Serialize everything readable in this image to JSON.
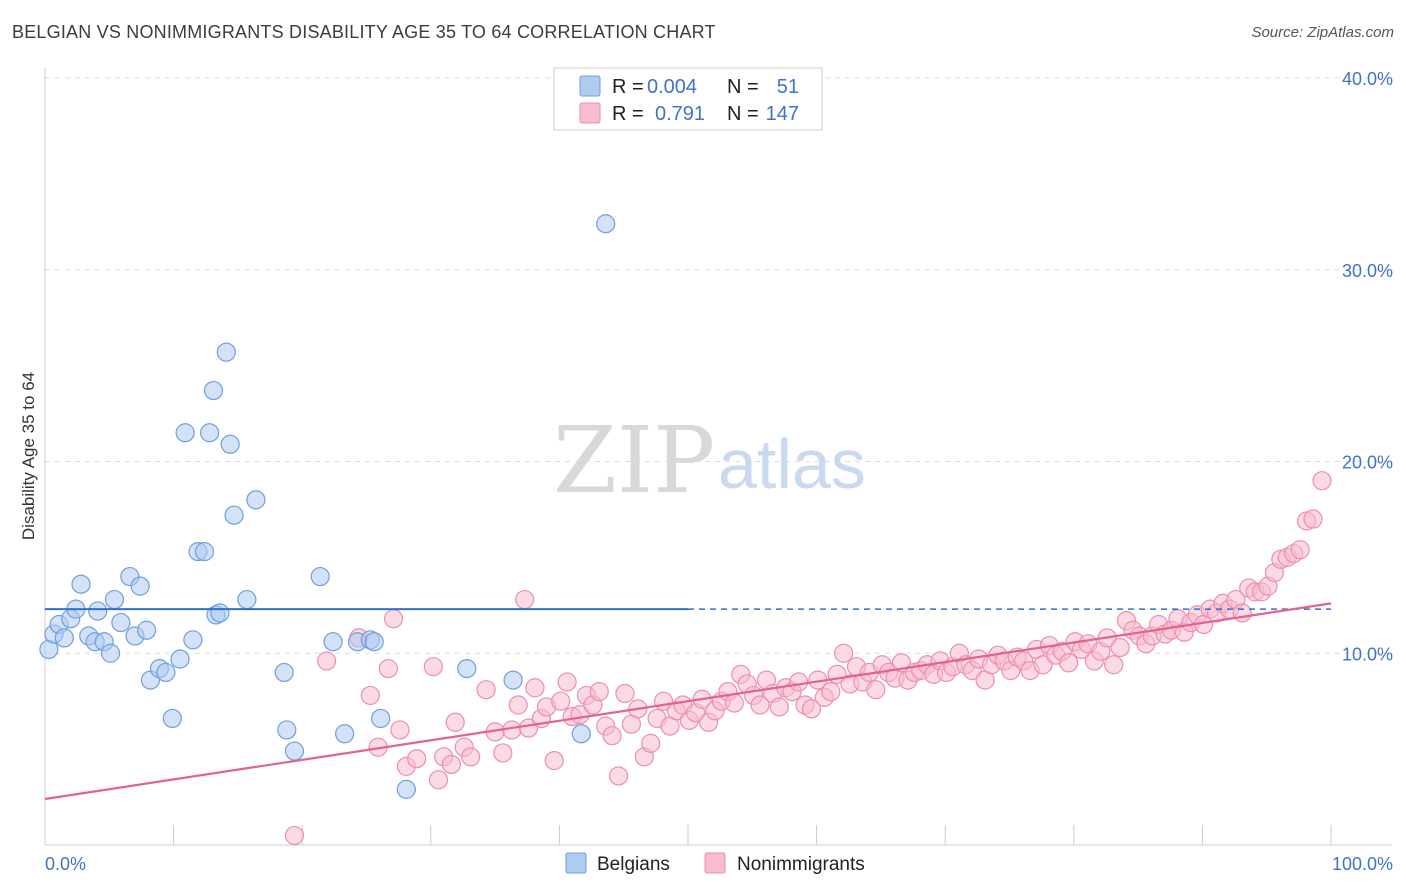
{
  "title": "BELGIAN VS NONIMMIGRANTS DISABILITY AGE 35 TO 64 CORRELATION CHART",
  "source": "Source: ZipAtlas.com",
  "watermark": {
    "part1": "ZIP",
    "part2": "atlas"
  },
  "legend_box": {
    "rows": [
      {
        "r_label": "R =",
        "r_value": "0.004",
        "n_label": "N =",
        "n_value": "51"
      },
      {
        "r_label": "R =",
        "r_value": "0.791",
        "n_label": "N =",
        "n_value": "147"
      }
    ]
  },
  "bottom_legend": [
    "Belgians",
    "Nonimmigrants"
  ],
  "colors": {
    "belgian_fill": "#aecbf0",
    "belgian_stroke": "#6f9fdc",
    "belgian_line": "#2f6fd0",
    "nonimm_fill": "#f7bcd0",
    "nonimm_stroke": "#ea8fb0",
    "nonimm_line": "#e3628f",
    "tick_text": "#3f73c9",
    "grid": "#dddddd"
  },
  "chart_data": {
    "type": "scatter",
    "title": "BELGIAN VS NONIMMIGRANTS DISABILITY AGE 35 TO 64 CORRELATION CHART",
    "xlabel": "",
    "ylabel": "Disability Age 35 to 64",
    "xlim": [
      0,
      100
    ],
    "ylim": [
      0,
      40
    ],
    "x_tick_labels": [
      "0.0%",
      "100.0%"
    ],
    "y_ticks": [
      10,
      20,
      30,
      40
    ],
    "y_tick_labels": [
      "10.0%",
      "20.0%",
      "30.0%",
      "40.0%"
    ],
    "grid": true,
    "legend_position": "top-center",
    "series": [
      {
        "name": "Belgians",
        "r": 0.004,
        "n": 51,
        "trend": {
          "x": [
            0,
            100
          ],
          "y": [
            12.3,
            12.3
          ],
          "solid_until_x": 50
        },
        "points": [
          [
            0.3,
            10.2
          ],
          [
            0.7,
            11.0
          ],
          [
            1.1,
            11.5
          ],
          [
            1.5,
            10.8
          ],
          [
            2.0,
            11.8
          ],
          [
            2.4,
            12.3
          ],
          [
            2.8,
            13.6
          ],
          [
            3.4,
            10.9
          ],
          [
            3.9,
            10.6
          ],
          [
            4.1,
            12.2
          ],
          [
            4.6,
            10.6
          ],
          [
            5.1,
            10.0
          ],
          [
            5.4,
            12.8
          ],
          [
            5.9,
            11.6
          ],
          [
            6.6,
            14.0
          ],
          [
            7.0,
            10.9
          ],
          [
            7.4,
            13.5
          ],
          [
            7.9,
            11.2
          ],
          [
            8.2,
            8.6
          ],
          [
            8.9,
            9.2
          ],
          [
            9.4,
            9.0
          ],
          [
            9.9,
            6.6
          ],
          [
            10.5,
            9.7
          ],
          [
            10.9,
            21.5
          ],
          [
            11.5,
            10.7
          ],
          [
            11.9,
            15.3
          ],
          [
            12.4,
            15.3
          ],
          [
            12.8,
            21.5
          ],
          [
            13.1,
            23.7
          ],
          [
            13.3,
            12.0
          ],
          [
            13.6,
            12.1
          ],
          [
            14.1,
            25.7
          ],
          [
            14.4,
            20.9
          ],
          [
            14.7,
            17.2
          ],
          [
            15.7,
            12.8
          ],
          [
            16.4,
            18.0
          ],
          [
            18.6,
            9.0
          ],
          [
            18.8,
            6.0
          ],
          [
            19.4,
            4.9
          ],
          [
            21.4,
            14.0
          ],
          [
            22.4,
            10.6
          ],
          [
            23.3,
            5.8
          ],
          [
            24.3,
            10.6
          ],
          [
            25.3,
            10.7
          ],
          [
            26.1,
            6.6
          ],
          [
            28.1,
            2.9
          ],
          [
            32.8,
            9.2
          ],
          [
            36.4,
            8.6
          ],
          [
            41.7,
            5.8
          ],
          [
            43.6,
            32.4
          ],
          [
            25.6,
            10.6
          ]
        ]
      },
      {
        "name": "Nonimmigrants",
        "r": 0.791,
        "n": 147,
        "trend": {
          "x": [
            0,
            100
          ],
          "y": [
            2.4,
            12.6
          ]
        },
        "points": [
          [
            19.4,
            0.5
          ],
          [
            21.9,
            9.6
          ],
          [
            24.4,
            10.8
          ],
          [
            25.3,
            7.8
          ],
          [
            25.9,
            5.1
          ],
          [
            26.7,
            9.2
          ],
          [
            27.1,
            11.8
          ],
          [
            27.6,
            6.0
          ],
          [
            28.1,
            4.1
          ],
          [
            28.9,
            4.5
          ],
          [
            30.2,
            9.3
          ],
          [
            30.6,
            3.4
          ],
          [
            31.0,
            4.6
          ],
          [
            31.6,
            4.2
          ],
          [
            31.9,
            6.4
          ],
          [
            32.6,
            5.1
          ],
          [
            33.1,
            4.6
          ],
          [
            34.3,
            8.1
          ],
          [
            35.0,
            5.9
          ],
          [
            35.6,
            4.8
          ],
          [
            36.3,
            6.0
          ],
          [
            36.8,
            7.3
          ],
          [
            37.3,
            12.8
          ],
          [
            37.6,
            6.1
          ],
          [
            38.1,
            8.2
          ],
          [
            38.6,
            6.6
          ],
          [
            39.0,
            7.2
          ],
          [
            39.6,
            4.4
          ],
          [
            40.1,
            7.5
          ],
          [
            40.6,
            8.5
          ],
          [
            41.0,
            6.7
          ],
          [
            41.6,
            6.8
          ],
          [
            42.1,
            7.8
          ],
          [
            42.6,
            7.3
          ],
          [
            43.1,
            8.0
          ],
          [
            43.6,
            6.2
          ],
          [
            44.1,
            5.7
          ],
          [
            44.6,
            3.6
          ],
          [
            45.1,
            7.9
          ],
          [
            45.6,
            6.3
          ],
          [
            46.1,
            7.1
          ],
          [
            46.6,
            4.6
          ],
          [
            47.1,
            5.3
          ],
          [
            47.6,
            6.6
          ],
          [
            48.1,
            7.5
          ],
          [
            48.6,
            6.2
          ],
          [
            49.1,
            7.0
          ],
          [
            49.6,
            7.3
          ],
          [
            50.1,
            6.5
          ],
          [
            50.6,
            6.9
          ],
          [
            51.1,
            7.6
          ],
          [
            51.6,
            6.4
          ],
          [
            52.1,
            7.0
          ],
          [
            52.6,
            7.5
          ],
          [
            53.1,
            8.0
          ],
          [
            53.6,
            7.4
          ],
          [
            54.1,
            8.9
          ],
          [
            54.6,
            8.4
          ],
          [
            55.1,
            7.8
          ],
          [
            55.6,
            7.3
          ],
          [
            56.1,
            8.6
          ],
          [
            56.6,
            7.9
          ],
          [
            57.1,
            7.2
          ],
          [
            57.6,
            8.2
          ],
          [
            58.1,
            8.0
          ],
          [
            58.6,
            8.5
          ],
          [
            59.1,
            7.3
          ],
          [
            59.6,
            7.1
          ],
          [
            60.1,
            8.6
          ],
          [
            60.6,
            7.7
          ],
          [
            61.1,
            8.0
          ],
          [
            61.6,
            8.9
          ],
          [
            62.1,
            10.0
          ],
          [
            62.6,
            8.4
          ],
          [
            63.1,
            9.3
          ],
          [
            63.6,
            8.5
          ],
          [
            64.1,
            9.0
          ],
          [
            64.6,
            8.1
          ],
          [
            65.1,
            9.4
          ],
          [
            65.6,
            9.0
          ],
          [
            66.1,
            8.7
          ],
          [
            66.6,
            9.5
          ],
          [
            67.1,
            8.6
          ],
          [
            67.6,
            9.0
          ],
          [
            68.1,
            9.1
          ],
          [
            68.6,
            9.4
          ],
          [
            69.1,
            8.9
          ],
          [
            69.6,
            9.6
          ],
          [
            70.1,
            9.0
          ],
          [
            70.6,
            9.3
          ],
          [
            71.1,
            10.0
          ],
          [
            71.6,
            9.4
          ],
          [
            72.1,
            9.1
          ],
          [
            72.6,
            9.7
          ],
          [
            73.1,
            8.6
          ],
          [
            73.6,
            9.4
          ],
          [
            74.1,
            9.9
          ],
          [
            74.6,
            9.6
          ],
          [
            75.1,
            9.1
          ],
          [
            75.6,
            9.8
          ],
          [
            76.1,
            9.6
          ],
          [
            76.6,
            9.1
          ],
          [
            77.1,
            10.2
          ],
          [
            77.6,
            9.4
          ],
          [
            78.1,
            10.4
          ],
          [
            78.6,
            9.9
          ],
          [
            79.1,
            10.1
          ],
          [
            79.6,
            9.5
          ],
          [
            80.1,
            10.6
          ],
          [
            80.6,
            10.2
          ],
          [
            81.1,
            10.5
          ],
          [
            81.6,
            9.6
          ],
          [
            82.1,
            10.1
          ],
          [
            82.6,
            10.8
          ],
          [
            83.1,
            9.4
          ],
          [
            83.6,
            10.3
          ],
          [
            84.1,
            11.7
          ],
          [
            84.6,
            11.2
          ],
          [
            85.1,
            10.9
          ],
          [
            85.6,
            10.5
          ],
          [
            86.1,
            10.9
          ],
          [
            86.6,
            11.5
          ],
          [
            87.1,
            11.0
          ],
          [
            87.6,
            11.2
          ],
          [
            88.1,
            11.8
          ],
          [
            88.6,
            11.1
          ],
          [
            89.1,
            11.6
          ],
          [
            89.6,
            12.0
          ],
          [
            90.1,
            11.5
          ],
          [
            90.6,
            12.3
          ],
          [
            91.1,
            12.1
          ],
          [
            91.6,
            12.6
          ],
          [
            92.1,
            12.3
          ],
          [
            92.6,
            12.8
          ],
          [
            93.1,
            12.1
          ],
          [
            93.6,
            13.4
          ],
          [
            94.1,
            13.2
          ],
          [
            94.6,
            13.2
          ],
          [
            95.1,
            13.5
          ],
          [
            95.6,
            14.2
          ],
          [
            96.1,
            14.9
          ],
          [
            96.6,
            15.0
          ],
          [
            97.1,
            15.2
          ],
          [
            97.6,
            15.4
          ],
          [
            98.1,
            16.9
          ],
          [
            98.6,
            17.0
          ],
          [
            99.3,
            19.0
          ]
        ]
      }
    ]
  }
}
